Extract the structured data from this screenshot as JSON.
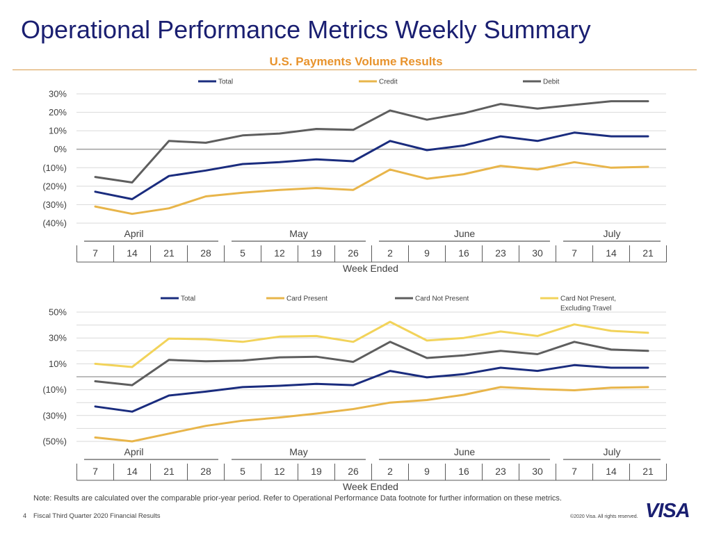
{
  "header": {
    "title": "Operational Performance Metrics Weekly Summary",
    "subtitle": "U.S. Payments Volume Results"
  },
  "footer": {
    "note": "Note: Results are calculated over the comparable prior-year period. Refer to Operational Performance Data footnote for further information on these metrics.",
    "page_number": "4",
    "left_text": "Fiscal Third Quarter 2020 Financial Results",
    "copyright": "©2020 Visa. All rights reserved.",
    "logo_text": "VISA"
  },
  "colors": {
    "navy": "#1a2c7e",
    "gold": "#e8b54a",
    "gray": "#5e5e5e",
    "yellow": "#f2d35a",
    "grid": "#d9d9d9",
    "zero_line": "#a6a6a6"
  },
  "chart_data": [
    {
      "type": "line",
      "title": "",
      "xlabel": "Week Ended",
      "ylabel": "",
      "categories": [
        "7",
        "14",
        "21",
        "28",
        "5",
        "12",
        "19",
        "26",
        "2",
        "9",
        "16",
        "23",
        "30",
        "7",
        "14",
        "21"
      ],
      "month_groups": [
        {
          "label": "April",
          "start": 0,
          "end": 3
        },
        {
          "label": "May",
          "start": 4,
          "end": 7
        },
        {
          "label": "June",
          "start": 8,
          "end": 12
        },
        {
          "label": "July",
          "start": 13,
          "end": 15
        }
      ],
      "ylim": [
        -40,
        30
      ],
      "yticks": [
        30,
        20,
        10,
        0,
        -10,
        -20,
        -30,
        -40
      ],
      "ytick_labels": [
        "30%",
        "20%",
        "10%",
        "0%",
        "(10%)",
        "(20%)",
        "(30%)",
        "(40%)"
      ],
      "legend_position": "top",
      "series": [
        {
          "name": "Total",
          "color_key": "navy",
          "values": [
            -23,
            -27,
            -14.5,
            -11.5,
            -8,
            -7,
            -5.5,
            -6.5,
            4.5,
            -0.5,
            2,
            7,
            4.5,
            9,
            7,
            7
          ]
        },
        {
          "name": "Credit",
          "color_key": "gold",
          "values": [
            -31,
            -35,
            -32,
            -25.5,
            -23.5,
            -22,
            -21,
            -22,
            -11,
            -16,
            -13.5,
            -9,
            -11,
            -7,
            -10,
            -9.5
          ]
        },
        {
          "name": "Debit",
          "color_key": "gray",
          "values": [
            -15,
            -18,
            4.5,
            3.5,
            7.5,
            8.5,
            11,
            10.5,
            21,
            16,
            19.5,
            24.5,
            22,
            24,
            26,
            26
          ]
        }
      ]
    },
    {
      "type": "line",
      "title": "",
      "xlabel": "Week Ended",
      "ylabel": "",
      "categories": [
        "7",
        "14",
        "21",
        "28",
        "5",
        "12",
        "19",
        "26",
        "2",
        "9",
        "16",
        "23",
        "30",
        "7",
        "14",
        "21"
      ],
      "month_groups": [
        {
          "label": "April",
          "start": 0,
          "end": 3
        },
        {
          "label": "May",
          "start": 4,
          "end": 7
        },
        {
          "label": "June",
          "start": 8,
          "end": 12
        },
        {
          "label": "July",
          "start": 13,
          "end": 15
        }
      ],
      "ylim": [
        -50,
        50
      ],
      "yticks": [
        50,
        40,
        30,
        20,
        10,
        0,
        -10,
        -20,
        -30,
        -40,
        -50
      ],
      "ytick_labels": [
        "50%",
        "",
        "30%",
        "",
        "10%",
        "",
        "(10%)",
        "",
        "(30%)",
        "",
        "(50%)"
      ],
      "legend_position": "top",
      "series": [
        {
          "name": "Total",
          "color_key": "navy",
          "values": [
            -23,
            -27,
            -14.5,
            -11.5,
            -8,
            -7,
            -5.5,
            -6.5,
            4.5,
            -0.5,
            2,
            7,
            4.5,
            9,
            7,
            7
          ]
        },
        {
          "name": "Card Present",
          "color_key": "gold",
          "values": [
            -47,
            -50,
            -44,
            -38,
            -34,
            -31.5,
            -28.5,
            -25,
            -20,
            -18,
            -14,
            -8,
            -9.5,
            -10.5,
            -8.5,
            -8
          ]
        },
        {
          "name": "Card Not Present",
          "color_key": "gray",
          "values": [
            -3.5,
            -6.5,
            13,
            12,
            12.5,
            15,
            15.5,
            11.5,
            27,
            14.5,
            16.5,
            20,
            17.5,
            27,
            21,
            20
          ]
        },
        {
          "name": "Card Not Present, Excluding Travel",
          "name_lines": [
            "Card Not Present,",
            "Excluding Travel"
          ],
          "color_key": "yellow",
          "values": [
            10,
            7.5,
            29.5,
            29,
            27,
            31,
            31.5,
            27,
            42.5,
            28,
            30,
            35,
            31.5,
            40.5,
            35.5,
            34
          ]
        }
      ]
    }
  ]
}
